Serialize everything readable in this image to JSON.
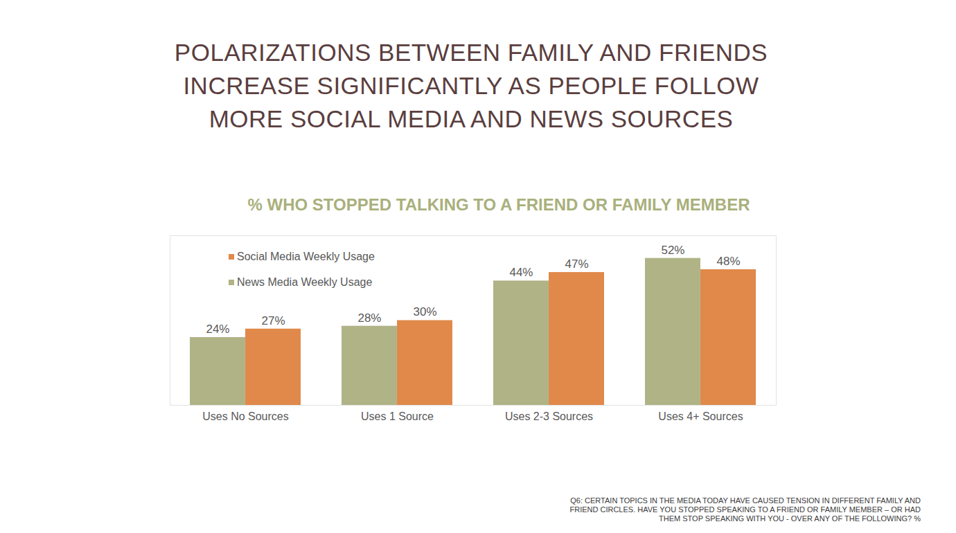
{
  "chart_data": {
    "type": "bar",
    "title": "POLARIZATIONS BETWEEN FAMILY AND FRIENDS\nINCREASE SIGNIFICANTLY AS PEOPLE FOLLOW\nMORE SOCIAL MEDIA AND NEWS SOURCES",
    "subtitle": "% WHO STOPPED TALKING TO A FRIEND OR FAMILY MEMBER",
    "caption": "Q6: CERTAIN TOPICS IN THE MEDIA TODAY HAVE CAUSED TENSION IN DIFFERENT FAMILY AND FRIEND CIRCLES. HAVE YOU STOPPED SPEAKING TO A FRIEND OR FAMILY MEMBER – OR HAD THEM STOP SPEAKING WITH YOU - OVER ANY OF THE FOLLOWING? %",
    "categories": [
      "Uses No Sources",
      "Uses 1 Source",
      "Uses 2-3 Sources",
      "Uses 4+ Sources"
    ],
    "series": [
      {
        "name": "News Media Weekly Usage",
        "color": "#b0b386",
        "values": [
          24,
          28,
          44,
          52
        ],
        "value_labels": [
          "24%",
          "28%",
          "44%",
          "52%"
        ]
      },
      {
        "name": "Social Media Weekly Usage",
        "color": "#e0894a",
        "values": [
          27,
          30,
          47,
          48
        ],
        "value_labels": [
          "27%",
          "30%",
          "47%",
          "48%"
        ]
      }
    ],
    "ylim": [
      0,
      60
    ],
    "yticks": [],
    "tick_labels": "x",
    "data_labels": true,
    "legend": "top-left",
    "grid": false
  }
}
